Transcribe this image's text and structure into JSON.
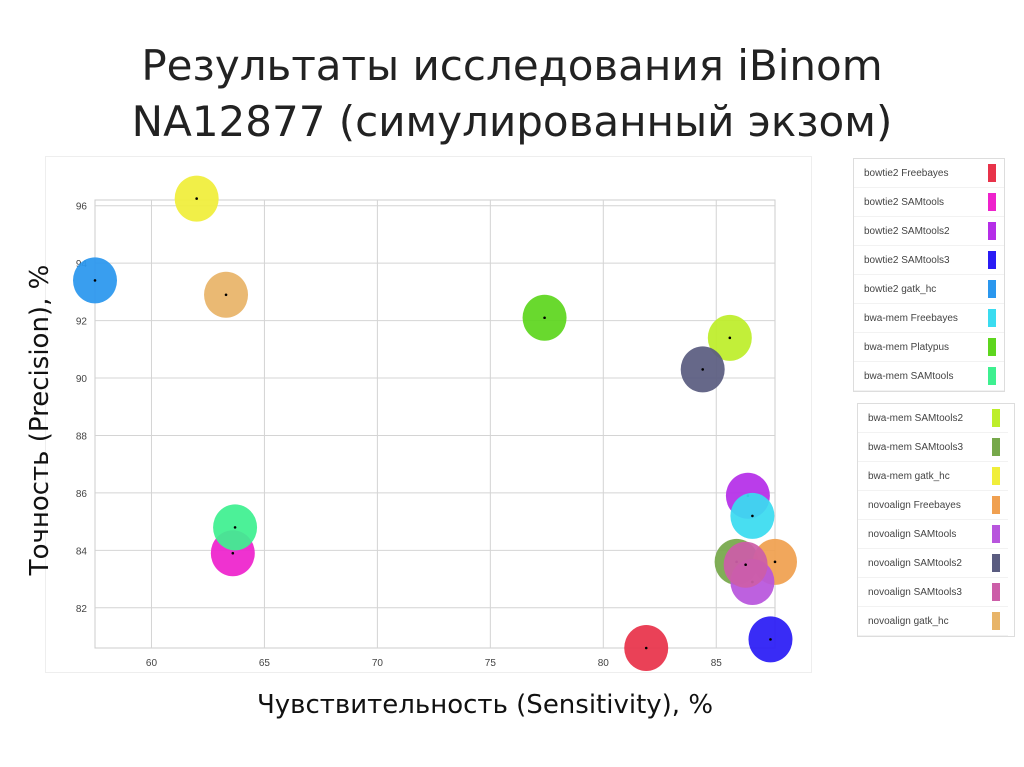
{
  "title_line1": "Результаты исследования iBinom",
  "title_line2": "NA12877 (симулированный экзом)",
  "chart_data": {
    "type": "scatter",
    "xlabel": "Чувствительность (Sensitivity), %",
    "ylabel": "Точность (Precision), %",
    "xlim": [
      57.5,
      87.6
    ],
    "ylim": [
      80.6,
      96.2
    ],
    "xticks": [
      60,
      65,
      70,
      75,
      80,
      85
    ],
    "yticks": [
      82,
      84,
      86,
      88,
      90,
      92,
      94,
      96
    ],
    "grid": true,
    "legend": "right",
    "series": [
      {
        "name": "bowtie2 Freebayes",
        "color": "#e8334a",
        "x": 81.9,
        "y": 80.6
      },
      {
        "name": "bowtie2 SAMtools",
        "color": "#ee22cc",
        "x": 63.6,
        "y": 83.9
      },
      {
        "name": "bowtie2 SAMtools2",
        "color": "#b52ee8",
        "x": 86.4,
        "y": 85.9
      },
      {
        "name": "bowtie2 SAMtools3",
        "color": "#2a1cf5",
        "x": 87.4,
        "y": 80.9
      },
      {
        "name": "bowtie2 gatk_hc",
        "color": "#2a97ee",
        "x": 57.5,
        "y": 93.4
      },
      {
        "name": "bwa-mem Freebayes",
        "color": "#3adcf0",
        "x": 86.6,
        "y": 85.2
      },
      {
        "name": "bwa-mem Platypus",
        "color": "#5ed61e",
        "x": 77.4,
        "y": 92.1
      },
      {
        "name": "bwa-mem SAMtools",
        "color": "#3ef090",
        "x": 63.7,
        "y": 84.8
      },
      {
        "name": "bwa-mem SAMtools2",
        "color": "#bdee2a",
        "x": 85.6,
        "y": 91.4
      },
      {
        "name": "bwa-mem SAMtools3",
        "color": "#76a84a",
        "x": 85.9,
        "y": 83.6
      },
      {
        "name": "bwa-mem gatk_hc",
        "color": "#f0ee3a",
        "x": 62.0,
        "y": 96.25
      },
      {
        "name": "novoalign Freebayes",
        "color": "#f0a050",
        "x": 87.6,
        "y": 83.6
      },
      {
        "name": "novoalign SAMtools",
        "color": "#b855dd",
        "x": 86.6,
        "y": 82.9
      },
      {
        "name": "novoalign SAMtools2",
        "color": "#5a5c80",
        "x": 84.4,
        "y": 90.3
      },
      {
        "name": "novoalign SAMtools3",
        "color": "#cc5ea8",
        "x": 86.3,
        "y": 83.5
      },
      {
        "name": "novoalign gatk_hc",
        "color": "#e8b468",
        "x": 63.3,
        "y": 92.9
      }
    ]
  }
}
